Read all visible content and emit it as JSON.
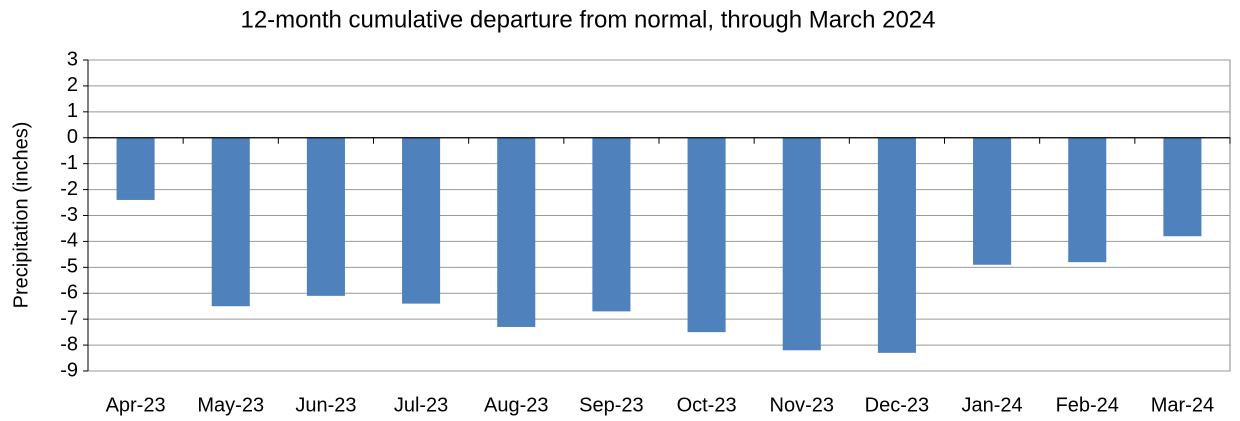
{
  "chart_data": {
    "type": "bar",
    "title": "12-month cumulative departure from normal, through March 2024",
    "y_label": "Precipitation (inches)",
    "categories": [
      "Apr-23",
      "May-23",
      "Jun-23",
      "Jul-23",
      "Aug-23",
      "Sep-23",
      "Oct-23",
      "Nov-23",
      "Dec-23",
      "Jan-24",
      "Feb-24",
      "Mar-24"
    ],
    "values": [
      -2.4,
      -6.5,
      -6.1,
      -6.4,
      -7.3,
      -6.7,
      -7.5,
      -8.2,
      -8.3,
      -4.9,
      -4.8,
      -3.8
    ],
    "color": "#4f81bd",
    "ylim": [
      -9,
      3
    ],
    "yticks": [
      -9,
      -8,
      -7,
      -6,
      -5,
      -4,
      -3,
      -2,
      -1,
      0,
      1,
      2,
      3
    ],
    "grid": true
  }
}
